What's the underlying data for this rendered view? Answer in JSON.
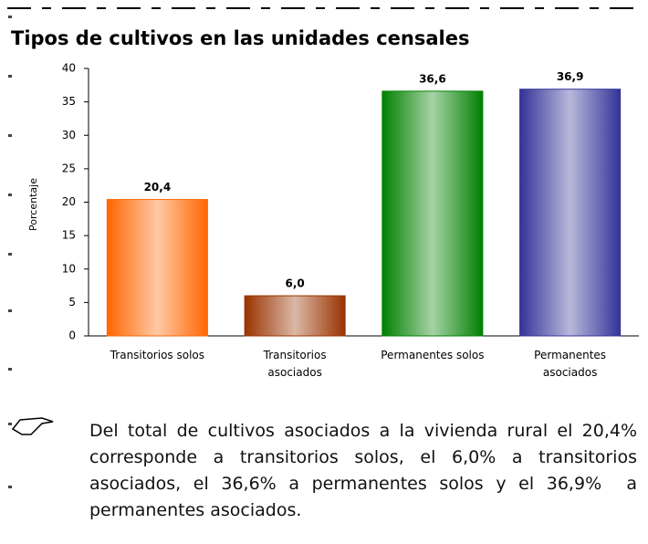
{
  "chart_data": {
    "type": "bar",
    "title": "Tipos de cultivos en las unidades censales",
    "y_label": "Porcentaje",
    "categories": [
      "Transitorios solos",
      "Transitorios asociados",
      "Permanentes solos",
      "Permanentes asociados"
    ],
    "values": [
      20.4,
      6.0,
      36.6,
      36.9
    ],
    "value_labels": [
      "20,4",
      "6,0",
      "36,6",
      "36,9"
    ],
    "colors": [
      "#ff6600",
      "#993300",
      "#008000",
      "#333399"
    ],
    "ylim": [
      0,
      40
    ],
    "yticks": [
      0,
      5,
      10,
      15,
      20,
      25,
      30,
      35,
      40
    ],
    "grid": false
  },
  "note": "Del total de cultivos asociados a la vivienda rural el 20,4% corresponde a transitorios solos, el 6,0% a transitorios asociados, el 36,6% a permanentes solos y el 36,9%  a permanentes asociados."
}
